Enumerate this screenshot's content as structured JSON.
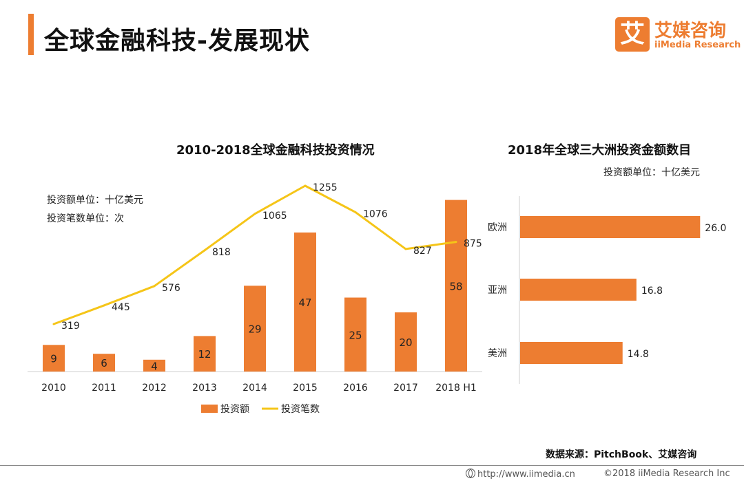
{
  "header": {
    "title": "全球金融科技-发展现状",
    "logo_mark": "艾",
    "logo_cn": "艾媒咨询",
    "logo_en": "iiMedia Research"
  },
  "chart_data": [
    {
      "type": "bar",
      "title": "2010-2018全球金融科技投资情况",
      "units": [
        "投资额单位：十亿美元",
        "投资笔数单位：次"
      ],
      "categories": [
        "2010",
        "2011",
        "2012",
        "2013",
        "2014",
        "2015",
        "2016",
        "2017",
        "2018 H1"
      ],
      "series": [
        {
          "name": "投资额",
          "type": "bar",
          "color": "#ed7d31",
          "values": [
            9,
            6,
            4,
            12,
            29,
            47,
            25,
            20,
            58
          ]
        },
        {
          "name": "投资笔数",
          "type": "line",
          "color": "#f5c518",
          "values": [
            319,
            445,
            576,
            818,
            1065,
            1255,
            1076,
            827,
            875
          ]
        }
      ],
      "legend": [
        "投资额",
        "投资笔数"
      ],
      "legend_position": "bottom"
    },
    {
      "type": "bar",
      "orientation": "horizontal",
      "title": "2018年全球三大洲投资金额数目",
      "unit": "投资额单位：十亿美元",
      "categories": [
        "欧洲",
        "亚洲",
        "美洲"
      ],
      "values": [
        26.0,
        16.8,
        14.8
      ],
      "labels": [
        "26.0",
        "16.8",
        "14.8"
      ],
      "color": "#ed7d31"
    }
  ],
  "source": "数据来源：PitchBook、艾媒咨询",
  "footer": {
    "url": "http://www.iimedia.cn",
    "copyright": "©2018  iiMedia Research Inc"
  }
}
